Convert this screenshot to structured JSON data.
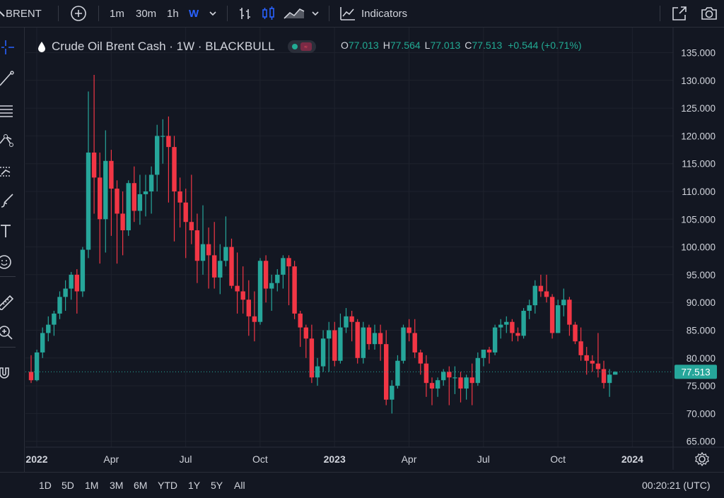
{
  "toolbar": {
    "symbol": "BRENT",
    "intervals": [
      "1m",
      "30m",
      "1h"
    ],
    "active_interval": "W",
    "indicators_label": "Indicators"
  },
  "legend": {
    "title": "Crude Oil Brent Cash · 1W · BLACKBULL",
    "o_label": "O",
    "o_value": "77.013",
    "h_label": "H",
    "h_value": "77.564",
    "l_label": "L",
    "l_value": "77.013",
    "c_label": "C",
    "c_value": "77.513",
    "change": "+0.544 (+0.71%)"
  },
  "bottom": {
    "ranges": [
      "1D",
      "5D",
      "1M",
      "3M",
      "6M",
      "YTD",
      "1Y",
      "5Y",
      "All"
    ],
    "clock": "00:20:21 (UTC)"
  },
  "colors": {
    "up": "#26a69a",
    "down": "#f23645",
    "bg": "#131722",
    "grid": "#1e222d"
  },
  "chart_data": {
    "type": "candlestick",
    "title": "Crude Oil Brent Cash · 1W · BLACKBULL",
    "ylim": [
      63,
      137
    ],
    "y_ticks": [
      "135.000",
      "130.000",
      "125.000",
      "120.000",
      "115.000",
      "110.000",
      "105.000",
      "100.000",
      "95.000",
      "90.000",
      "85.000",
      "80.000",
      "75.000",
      "70.000",
      "65.000"
    ],
    "x_ticks": [
      {
        "label": "2022",
        "week": 0
      },
      {
        "label": "Apr",
        "week": 13
      },
      {
        "label": "Jul",
        "week": 26
      },
      {
        "label": "Oct",
        "week": 39
      },
      {
        "label": "2023",
        "week": 52
      },
      {
        "label": "Apr",
        "week": 65
      },
      {
        "label": "Jul",
        "week": 78
      },
      {
        "label": "Oct",
        "week": 91
      },
      {
        "label": "2024",
        "week": 104
      }
    ],
    "last_price": "77.513",
    "candles": [
      [
        77.5,
        80.5,
        75.5,
        76.0
      ],
      [
        76.0,
        81.5,
        75.8,
        81.0
      ],
      [
        81.0,
        85.5,
        80.0,
        84.5
      ],
      [
        84.5,
        87.5,
        83.0,
        86.0
      ],
      [
        86.0,
        88.5,
        84.0,
        88.0
      ],
      [
        88.0,
        92.0,
        87.0,
        91.0
      ],
      [
        91.0,
        94.0,
        88.5,
        92.5
      ],
      [
        92.5,
        95.5,
        90.5,
        95.0
      ],
      [
        95.0,
        96.0,
        88.0,
        92.0
      ],
      [
        92.0,
        100.0,
        91.0,
        99.5
      ],
      [
        99.5,
        128.0,
        98.0,
        117.0
      ],
      [
        117.0,
        131.0,
        106.0,
        112.5
      ],
      [
        112.5,
        117.0,
        97.0,
        105.0
      ],
      [
        105.0,
        121.0,
        99.0,
        115.5
      ],
      [
        115.5,
        117.5,
        102.0,
        110.5
      ],
      [
        110.5,
        112.0,
        97.0,
        106.0
      ],
      [
        106.0,
        110.0,
        98.5,
        103.0
      ],
      [
        103.0,
        112.0,
        102.0,
        111.5
      ],
      [
        111.5,
        114.5,
        104.5,
        106.5
      ],
      [
        106.5,
        113.0,
        104.0,
        109.5
      ],
      [
        109.5,
        113.0,
        105.5,
        110.0
      ],
      [
        110.0,
        114.5,
        106.0,
        113.0
      ],
      [
        113.0,
        122.0,
        110.0,
        120.0
      ],
      [
        120.0,
        123.0,
        115.0,
        120.0
      ],
      [
        120.0,
        123.5,
        108.0,
        118.0
      ],
      [
        118.0,
        120.0,
        101.0,
        110.0
      ],
      [
        110.0,
        112.5,
        103.5,
        108.0
      ],
      [
        108.0,
        110.5,
        98.0,
        104.5
      ],
      [
        104.5,
        113.0,
        100.5,
        103.0
      ],
      [
        103.0,
        106.0,
        93.5,
        97.5
      ],
      [
        97.5,
        107.5,
        95.0,
        100.5
      ],
      [
        100.5,
        103.5,
        92.5,
        98.5
      ],
      [
        98.5,
        104.5,
        92.5,
        94.5
      ],
      [
        94.5,
        100.5,
        91.5,
        97.5
      ],
      [
        97.5,
        105.5,
        96.5,
        100.0
      ],
      [
        100.0,
        101.5,
        92.5,
        93.0
      ],
      [
        93.0,
        99.0,
        88.0,
        92.0
      ],
      [
        92.0,
        96.5,
        88.0,
        90.5
      ],
      [
        90.5,
        94.0,
        84.0,
        87.5
      ],
      [
        87.5,
        92.0,
        83.0,
        86.5
      ],
      [
        86.5,
        98.0,
        86.0,
        97.5
      ],
      [
        97.5,
        98.5,
        90.0,
        92.5
      ],
      [
        92.5,
        95.0,
        88.5,
        93.5
      ],
      [
        93.5,
        96.0,
        92.0,
        95.0
      ],
      [
        95.0,
        98.5,
        92.5,
        98.0
      ],
      [
        98.0,
        98.5,
        89.5,
        96.5
      ],
      [
        96.5,
        97.5,
        87.0,
        88.0
      ],
      [
        88.0,
        88.5,
        82.0,
        85.5
      ],
      [
        85.5,
        86.0,
        80.0,
        83.5
      ],
      [
        83.5,
        86.0,
        75.5,
        76.5
      ],
      [
        76.5,
        80.0,
        75.0,
        78.5
      ],
      [
        78.5,
        85.0,
        77.5,
        83.5
      ],
      [
        83.5,
        86.5,
        77.5,
        85.0
      ],
      [
        85.0,
        86.5,
        78.5,
        79.5
      ],
      [
        79.5,
        88.0,
        79.0,
        85.5
      ],
      [
        85.5,
        89.0,
        84.5,
        87.5
      ],
      [
        87.5,
        88.5,
        83.0,
        86.5
      ],
      [
        86.5,
        87.0,
        79.0,
        80.0
      ],
      [
        80.0,
        86.5,
        79.0,
        85.5
      ],
      [
        85.5,
        86.0,
        81.5,
        82.5
      ],
      [
        82.5,
        86.0,
        81.5,
        84.5
      ],
      [
        84.5,
        86.0,
        79.5,
        82.5
      ],
      [
        82.5,
        85.0,
        71.5,
        72.5
      ],
      [
        72.5,
        76.0,
        70.0,
        75.0
      ],
      [
        75.0,
        80.5,
        74.5,
        79.5
      ],
      [
        79.5,
        86.0,
        79.0,
        85.5
      ],
      [
        85.5,
        87.0,
        83.0,
        84.5
      ],
      [
        84.5,
        87.0,
        80.0,
        81.0
      ],
      [
        81.0,
        81.5,
        77.0,
        79.0
      ],
      [
        79.0,
        80.5,
        73.0,
        75.5
      ],
      [
        75.5,
        76.5,
        71.5,
        74.5
      ],
      [
        74.5,
        76.5,
        73.0,
        76.0
      ],
      [
        76.0,
        78.0,
        75.0,
        77.5
      ],
      [
        77.5,
        78.5,
        71.5,
        76.5
      ],
      [
        76.5,
        78.5,
        73.5,
        76.5
      ],
      [
        76.5,
        77.5,
        72.0,
        74.5
      ],
      [
        74.5,
        77.0,
        72.5,
        76.5
      ],
      [
        76.5,
        79.0,
        71.5,
        75.5
      ],
      [
        75.5,
        81.0,
        75.0,
        80.0
      ],
      [
        80.0,
        81.5,
        78.5,
        81.5
      ],
      [
        81.5,
        82.0,
        79.0,
        81.0
      ],
      [
        81.0,
        86.0,
        80.5,
        85.5
      ],
      [
        85.5,
        87.0,
        83.5,
        86.0
      ],
      [
        86.0,
        87.5,
        84.5,
        86.5
      ],
      [
        86.5,
        87.0,
        83.0,
        84.5
      ],
      [
        84.5,
        85.5,
        83.0,
        84.0
      ],
      [
        84.0,
        89.0,
        83.5,
        88.5
      ],
      [
        88.5,
        90.5,
        87.0,
        89.5
      ],
      [
        89.5,
        94.0,
        88.0,
        93.0
      ],
      [
        93.0,
        95.0,
        91.0,
        92.0
      ],
      [
        92.0,
        95.0,
        90.0,
        91.0
      ],
      [
        91.0,
        91.5,
        83.5,
        84.5
      ],
      [
        84.5,
        90.5,
        84.5,
        89.5
      ],
      [
        89.5,
        92.5,
        87.5,
        90.5
      ],
      [
        90.5,
        91.0,
        84.0,
        86.0
      ],
      [
        86.0,
        86.5,
        82.5,
        83.0
      ],
      [
        83.0,
        85.5,
        79.5,
        80.5
      ],
      [
        80.5,
        82.0,
        77.0,
        79.5
      ],
      [
        79.5,
        80.5,
        77.5,
        79.0
      ],
      [
        79.0,
        84.5,
        76.5,
        78.0
      ],
      [
        78.0,
        79.5,
        74.5,
        75.5
      ],
      [
        75.5,
        78.0,
        73.0,
        77.0
      ],
      [
        77.0,
        77.6,
        77.0,
        77.5
      ]
    ]
  }
}
